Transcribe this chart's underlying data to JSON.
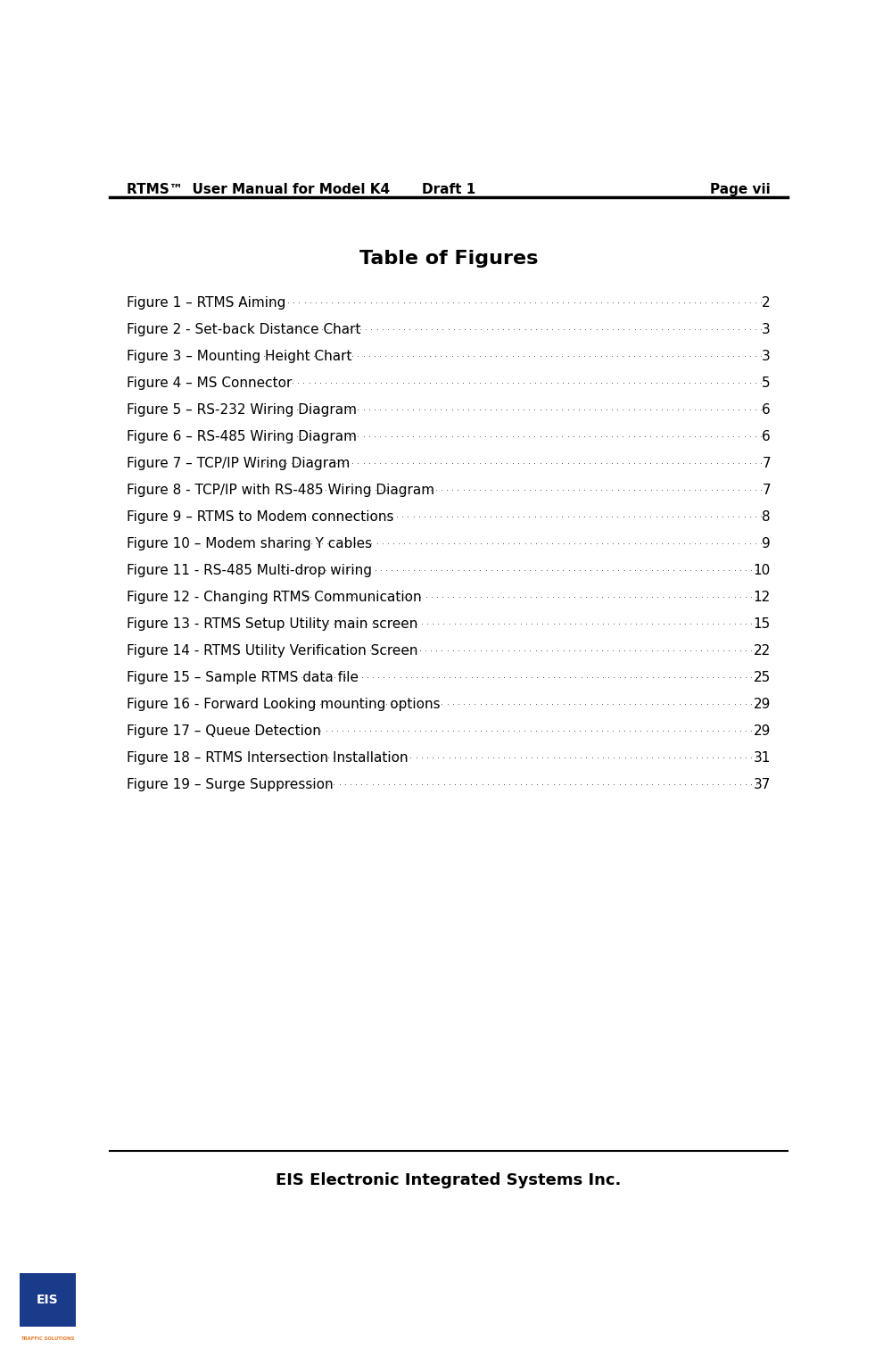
{
  "header_left": "RTMS™  User Manual for Model K4",
  "header_center": "Draft 1",
  "header_right": "Page vii",
  "title": "Table of Figures",
  "entries": [
    {
      "label": "Figure 1 – RTMS Aiming",
      "page": "2"
    },
    {
      "label": "Figure 2 - Set-back Distance Chart",
      "page": "3"
    },
    {
      "label": "Figure 3 – Mounting Height Chart",
      "page": "3"
    },
    {
      "label": "Figure 4 – MS Connector",
      "page": "5"
    },
    {
      "label": "Figure 5 – RS-232 Wiring Diagram",
      "page": "6"
    },
    {
      "label": "Figure 6 – RS-485 Wiring Diagram",
      "page": "6"
    },
    {
      "label": "Figure 7 – TCP/IP Wiring Diagram",
      "page": "7"
    },
    {
      "label": "Figure 8 - TCP/IP with RS-485 Wiring Diagram",
      "page": "7"
    },
    {
      "label": "Figure 9 – RTMS to Modem connections",
      "page": "8"
    },
    {
      "label": "Figure 10 – Modem sharing Y cables",
      "page": "9"
    },
    {
      "label": "Figure 11 - RS-485 Multi-drop wiring",
      "page": "10"
    },
    {
      "label": "Figure 12 - Changing RTMS Communication",
      "page": "12"
    },
    {
      "label": "Figure 13 - RTMS Setup Utility main screen",
      "page": "15"
    },
    {
      "label": "Figure 14 - RTMS Utility Verification Screen",
      "page": "22"
    },
    {
      "label": "Figure 15 – Sample RTMS data file",
      "page": "25"
    },
    {
      "label": "Figure 16 - Forward Looking mounting options",
      "page": "29"
    },
    {
      "label": "Figure 17 – Queue Detection",
      "page": "29"
    },
    {
      "label": "Figure 18 – RTMS Intersection Installation",
      "page": "31"
    },
    {
      "label": "Figure 19 – Surge Suppression",
      "page": "37"
    }
  ],
  "footer_text": "EIS Electronic Integrated Systems Inc.",
  "bg_color": "#ffffff",
  "text_color": "#000000",
  "header_font_size": 11,
  "title_font_size": 16,
  "entry_font_size": 11,
  "footer_font_size": 13
}
